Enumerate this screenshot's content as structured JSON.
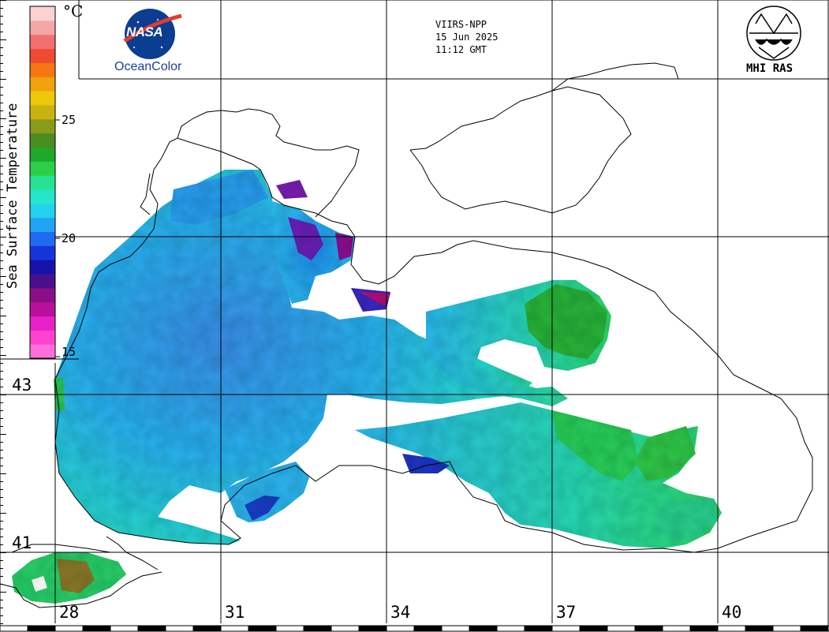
{
  "header": {
    "sensor": "VIIRS-NPP",
    "date": "15 Jun 2025",
    "time": "11:12 GMT"
  },
  "logos": {
    "nasa": "NASA",
    "oceancolor": "OceanColor",
    "mhi": "MHI RAS"
  },
  "legend": {
    "title": "Sea Surface Temperature",
    "unit": "°C",
    "ticks": [
      "25",
      "20",
      "15"
    ],
    "colors": [
      "#ff6fd8",
      "#ff43d0",
      "#e820c8",
      "#b8109c",
      "#8a0f86",
      "#4b0f8e",
      "#1512a8",
      "#1635d8",
      "#1f6cf0",
      "#22a4f4",
      "#23d2ee",
      "#24e6cc",
      "#27e290",
      "#2ccf47",
      "#1fa82c",
      "#4a8d20",
      "#8a9a1a",
      "#c9b310",
      "#efc80a",
      "#f2a10e",
      "#f67612",
      "#f04a32",
      "#f07070",
      "#f5a6a6",
      "#fbd1d1"
    ]
  },
  "grid": {
    "latitudes": [
      "43",
      "41"
    ],
    "longitudes": [
      "28",
      "31",
      "34",
      "37",
      "40"
    ]
  }
}
